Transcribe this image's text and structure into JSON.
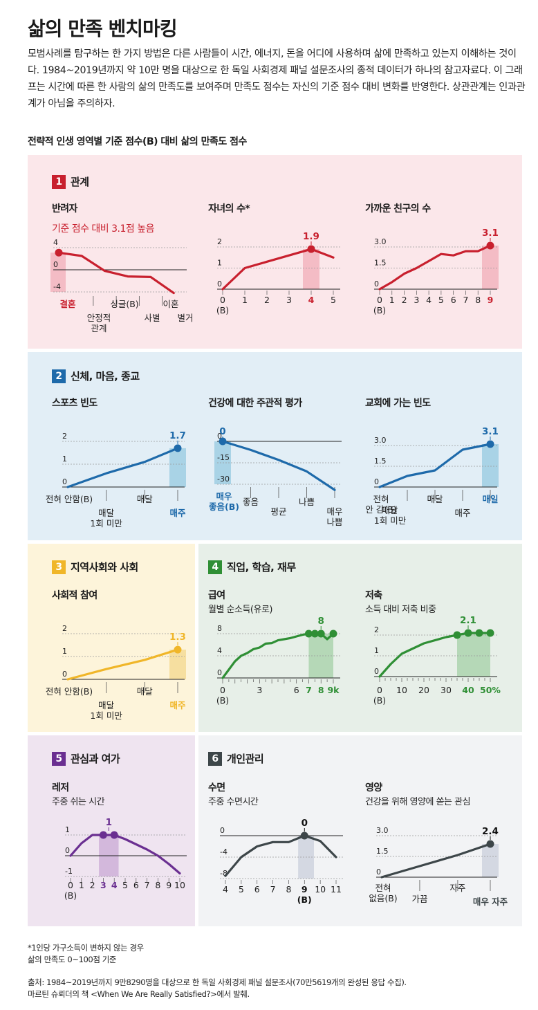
{
  "title": "삶의 만족 벤치마킹",
  "intro": "모범사례를 탐구하는 한 가지 방법은 다른 사람들이 시간, 에너지, 돈을 어디에 사용하며 삶에 만족하고 있는지 이해하는 것이다. 1984~2019년까지 약 10만 명을 대상으로 한 독일 사회경제 패널 설문조사의 종적 데이터가 하나의 참고자료다. 이 그래프는 시간에 따른 한 사람의 삶의 만족도를 보여주며 만족도 점수는 자신의 기준 점수 대비 변화를 반영한다. 상관관계는 인과관계가 아님을 주의하자.",
  "subtitle": "전략적 인생 영역별 기준 점수(B) 대비 삶의 만족도 점수",
  "sections": {
    "s1": {
      "num": "1",
      "label": "관계",
      "bg": "#fbe7ea",
      "color": "#c8202e",
      "hl": "#f4bcc5"
    },
    "s2": {
      "num": "2",
      "label": "신체, 마음, 종교",
      "bg": "#e2eef6",
      "color": "#1e6aaa",
      "hl": "#a9d3e6"
    },
    "s3": {
      "num": "3",
      "label": "지역사회와 사회",
      "bg": "#fdf4da",
      "color": "#f0b629",
      "hl": "#f6dfa0"
    },
    "s4": {
      "num": "4",
      "label": "직업, 학습, 재무",
      "bg": "#e7efe8",
      "color": "#2f8f35",
      "hl": "#b5d8b7"
    },
    "s5": {
      "num": "5",
      "label": "관심과 여가",
      "bg": "#efe4f0",
      "color": "#6a2f91",
      "hl": "#d3b8dc"
    },
    "s6": {
      "num": "6",
      "label": "개인관리",
      "bg": "#f2f3f5",
      "color": "#3d4649",
      "hl": "#d4d8e2"
    }
  },
  "chart_data": [
    {
      "id": "partner",
      "type": "line",
      "title": "반려자",
      "subtitle": "기준 점수 대비 3.1점 높음",
      "categories": [
        "결혼",
        "안정적 관계",
        "싱글(B)",
        "사별",
        "이혼",
        "별거"
      ],
      "values": [
        3.1,
        2.5,
        -0.2,
        -1.2,
        -1.3,
        -4.2
      ],
      "yticks": [
        4,
        0,
        -4
      ],
      "ylim": [
        -4,
        4
      ],
      "highlight_index": 0,
      "highlight_tick": "결혼",
      "tick_labels": [
        "결혼",
        "안정적\n관계",
        "싱글(B)",
        "사별",
        "이혼",
        "별거"
      ]
    },
    {
      "id": "children",
      "type": "line",
      "title": "자녀의 수*",
      "x": [
        0,
        1,
        2,
        3,
        4,
        5
      ],
      "values": [
        0,
        1.0,
        1.3,
        1.6,
        1.9,
        1.5
      ],
      "yticks": [
        2,
        1,
        0
      ],
      "ylim": [
        0,
        2
      ],
      "highlight_index": 4,
      "annotation": "1.9",
      "tick_labels": [
        "0\n(B)",
        "1",
        "2",
        "3",
        "4",
        "5"
      ]
    },
    {
      "id": "friends",
      "type": "line",
      "title": "가까운 친구의 수",
      "x": [
        0,
        1,
        2,
        3,
        4,
        5,
        6,
        7,
        8,
        9
      ],
      "values": [
        0,
        0.5,
        1.1,
        1.5,
        2.0,
        2.5,
        2.4,
        2.7,
        2.7,
        3.1
      ],
      "yticks": [
        3.0,
        1.5,
        0
      ],
      "ylim": [
        0,
        3.0
      ],
      "highlight_index": 9,
      "annotation": "3.1",
      "tick_labels": [
        "0\n(B)",
        "1",
        "2",
        "3",
        "4",
        "5",
        "6",
        "7",
        "8",
        "9"
      ]
    },
    {
      "id": "sports",
      "type": "line",
      "title": "스포츠 빈도",
      "categories": [
        "전혀 안함(B)",
        "매달 1회 미만",
        "매달",
        "매주"
      ],
      "values": [
        0,
        0.6,
        1.1,
        1.7
      ],
      "yticks": [
        2,
        1,
        0
      ],
      "ylim": [
        0,
        2
      ],
      "highlight_index": 3,
      "annotation": "1.7",
      "tick_labels": [
        "전혀 안함(B)",
        "매달\n1회 미만",
        "매달",
        "매주"
      ]
    },
    {
      "id": "health",
      "type": "line",
      "title": "건강에 대한 주관적 평가",
      "categories": [
        "매우 좋음(B)",
        "좋음",
        "평균",
        "나쁨",
        "매우 나쁨"
      ],
      "values": [
        0,
        -6,
        -13,
        -21,
        -34
      ],
      "yticks": [
        0,
        -15,
        -30
      ],
      "ylim": [
        -30,
        0
      ],
      "highlight_index": 0,
      "annotation": "0",
      "tick_labels": [
        "매우\n좋음(B)",
        "좋음",
        "평균",
        "나쁨",
        "매우\n나쁨"
      ]
    },
    {
      "id": "church",
      "type": "line",
      "title": "교회에 가는 빈도",
      "categories": [
        "전혀 안 감(B)",
        "매달 1회 미만",
        "매달",
        "매주",
        "매일"
      ],
      "values": [
        0,
        0.8,
        1.2,
        2.7,
        3.1
      ],
      "yticks": [
        3.0,
        1.5,
        0
      ],
      "ylim": [
        0,
        3.0
      ],
      "highlight_index": 4,
      "annotation": "3.1",
      "tick_labels": [
        "전혀\n안 감(B)",
        "매달\n1회 미만",
        "매달",
        "매주",
        "매일"
      ]
    },
    {
      "id": "social",
      "type": "line",
      "title": "사회적 참여",
      "categories": [
        "전혀 안함(B)",
        "매달 1회 미만",
        "매달",
        "매주"
      ],
      "values": [
        0,
        0.45,
        0.85,
        1.3
      ],
      "yticks": [
        2,
        1,
        0
      ],
      "ylim": [
        0,
        2
      ],
      "highlight_index": 3,
      "annotation": "1.3",
      "tick_labels": [
        "전혀 안함(B)",
        "매달\n1회 미만",
        "매달",
        "매주"
      ]
    },
    {
      "id": "income",
      "type": "line",
      "title": "급여",
      "subtitle": "월별 순소득(유로)",
      "x": [
        0,
        0.5,
        1,
        1.5,
        2,
        2.5,
        3,
        3.5,
        4,
        4.5,
        5,
        5.5,
        6,
        6.5,
        7,
        7.5,
        8,
        8.5,
        9
      ],
      "values": [
        0,
        1.5,
        3,
        4,
        4.5,
        5.2,
        5.5,
        6.2,
        6.3,
        6.8,
        7.0,
        7.2,
        7.5,
        7.8,
        8,
        8,
        8,
        7.0,
        8
      ],
      "yticks": [
        8,
        4,
        0
      ],
      "ylim": [
        0,
        8
      ],
      "annotation": "8",
      "dots": [
        7,
        7.5,
        8,
        9
      ],
      "highlight_range": [
        7,
        9
      ],
      "xticks": [
        "0\n(B)",
        "3",
        "6",
        "7",
        "8",
        "9k"
      ]
    },
    {
      "id": "savings",
      "type": "line",
      "title": "저축",
      "subtitle": "소득 대비 저축 비중",
      "x": [
        0,
        5,
        10,
        20,
        30,
        35,
        40,
        45,
        50
      ],
      "values": [
        0,
        0.6,
        1.1,
        1.6,
        1.9,
        2.0,
        2.1,
        2.1,
        2.1
      ],
      "yticks": [
        2,
        1,
        0
      ],
      "ylim": [
        0,
        2
      ],
      "annotation": "2.1",
      "dots": [
        35,
        40,
        45,
        50
      ],
      "highlight_range": [
        35,
        50
      ],
      "xticks": [
        "0\n(B)",
        "10",
        "20",
        "30",
        "40",
        "50%"
      ]
    },
    {
      "id": "leisure",
      "type": "line",
      "title": "레저",
      "subtitle": "주중 쉬는 시간",
      "x": [
        0,
        1,
        2,
        3,
        4,
        5,
        6,
        7,
        8,
        9,
        10
      ],
      "values": [
        0,
        0.6,
        1.0,
        1.0,
        1.0,
        0.8,
        0.55,
        0.3,
        0,
        -0.4,
        -0.85
      ],
      "yticks": [
        1,
        0,
        -1
      ],
      "ylim": [
        -1,
        1
      ],
      "annotation": "1",
      "dots": [
        3,
        4
      ],
      "highlight_range": [
        2.6,
        4.4
      ],
      "xticks": [
        "0\n(B)",
        "1",
        "2",
        "3",
        "4",
        "5",
        "6",
        "7",
        "8",
        "9",
        "10"
      ]
    },
    {
      "id": "sleep",
      "type": "line",
      "title": "수면",
      "subtitle": "주중 수면시간",
      "x": [
        4,
        5,
        6,
        7,
        8,
        9,
        10,
        11
      ],
      "values": [
        -7.5,
        -4,
        -2,
        -1.2,
        -1.2,
        0,
        -1,
        -4
      ],
      "yticks": [
        0,
        -4,
        -8
      ],
      "ylim": [
        -8,
        0
      ],
      "annotation": "0",
      "dots": [
        9
      ],
      "highlight_range": [
        8.6,
        9.6
      ],
      "xticks": [
        "4",
        "5",
        "6",
        "7",
        "8",
        "9\n(B)",
        "10",
        "11"
      ]
    },
    {
      "id": "nutrition",
      "type": "line",
      "title": "영양",
      "subtitle": "건강을 위해 영양에 쏟는 관심",
      "categories": [
        "전혀 없음(B)",
        "가끔",
        "자주",
        "매우 자주"
      ],
      "values": [
        0,
        0.8,
        1.6,
        2.4
      ],
      "yticks": [
        3.0,
        1.5,
        0
      ],
      "ylim": [
        0,
        3.0
      ],
      "highlight_index": 3,
      "annotation": "2.4",
      "tick_labels": [
        "전혀\n없음(B)",
        "가끔",
        "자주",
        "매우 자주"
      ]
    }
  ],
  "footnotes": {
    "note1": "*1인당 가구소득이 변하지 않는 경우",
    "note2": "삶의 만족도 0~100점 기준",
    "source1": "출처: 1984~2019년까지 9만8290명을 대상으로 한 독일 사회경제 패널 설문조사(70만5619개의 완성된 응답 수집).",
    "source2": "마르틴 슈뢰더의 책 <When We Are Really Satisfied?>에서 발췌."
  }
}
